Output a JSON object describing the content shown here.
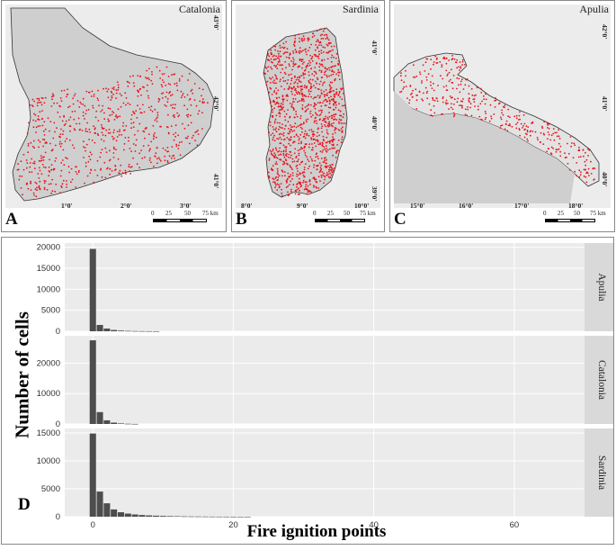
{
  "maps": [
    {
      "title": "Catalonia",
      "letter": "A",
      "lon_ticks": [
        "1°0'",
        "2°0'",
        "3°0'"
      ],
      "lat_ticks": [
        "43°0'",
        "42°0'",
        "41°0'"
      ],
      "scale_ticks": [
        "0",
        "25",
        "50",
        "75 km"
      ]
    },
    {
      "title": "Sardinia",
      "letter": "B",
      "lon_ticks": [
        "8°0'",
        "9°0'",
        "10°0'"
      ],
      "lat_ticks": [
        "41°0'",
        "40°0'",
        "39°0'"
      ],
      "scale_ticks": [
        "0",
        "25",
        "50",
        "75 km"
      ]
    },
    {
      "title": "Apulia",
      "letter": "C",
      "lon_ticks": [
        "15°0'",
        "16°0'",
        "17°0'",
        "18°0'"
      ],
      "lat_ticks": [
        "42°0'",
        "41°0'",
        "40°0'"
      ],
      "scale_ticks": [
        "0",
        "25",
        "50",
        "75 km"
      ]
    }
  ],
  "colors": {
    "fire_points": "#e8141c",
    "bars": "#4d4d4d",
    "panel_bg": "#ebebeb",
    "strip_bg": "#d9d9d9",
    "gridline": "#ffffff",
    "terrain": "#cfcfcf"
  },
  "chart_data": {
    "type": "bar",
    "panel_letter": "D",
    "xlabel": "Fire ignition points",
    "ylabel": "Number of cells",
    "xlim": [
      -4,
      70
    ],
    "x_ticks": [
      0,
      20,
      40,
      60
    ],
    "grid": true,
    "facets": [
      {
        "strip": "Apulia",
        "ylim": [
          0,
          21000
        ],
        "y_ticks": [
          0,
          5000,
          10000,
          15000,
          20000
        ],
        "x": [
          0,
          1,
          2,
          3,
          4,
          5,
          6,
          7,
          8,
          9
        ],
        "values": [
          19600,
          1500,
          650,
          300,
          160,
          90,
          55,
          35,
          20,
          10
        ]
      },
      {
        "strip": "Catalonia",
        "ylim": [
          0,
          29000
        ],
        "y_ticks": [
          0,
          10000,
          20000
        ],
        "x": [
          0,
          1,
          2,
          3,
          4,
          5,
          6
        ],
        "values": [
          27500,
          3900,
          1200,
          450,
          180,
          80,
          30
        ]
      },
      {
        "strip": "Sardinia",
        "ylim": [
          0,
          15800
        ],
        "y_ticks": [
          0,
          5000,
          10000,
          15000
        ],
        "x": [
          0,
          1,
          2,
          3,
          4,
          5,
          6,
          7,
          8,
          9,
          10,
          11,
          12,
          13,
          14,
          15,
          16,
          17,
          18,
          19,
          20,
          21,
          22
        ],
        "values": [
          14900,
          4500,
          2400,
          1300,
          800,
          560,
          400,
          300,
          230,
          180,
          140,
          110,
          85,
          65,
          50,
          40,
          30,
          22,
          16,
          12,
          8,
          5,
          3
        ]
      }
    ]
  }
}
